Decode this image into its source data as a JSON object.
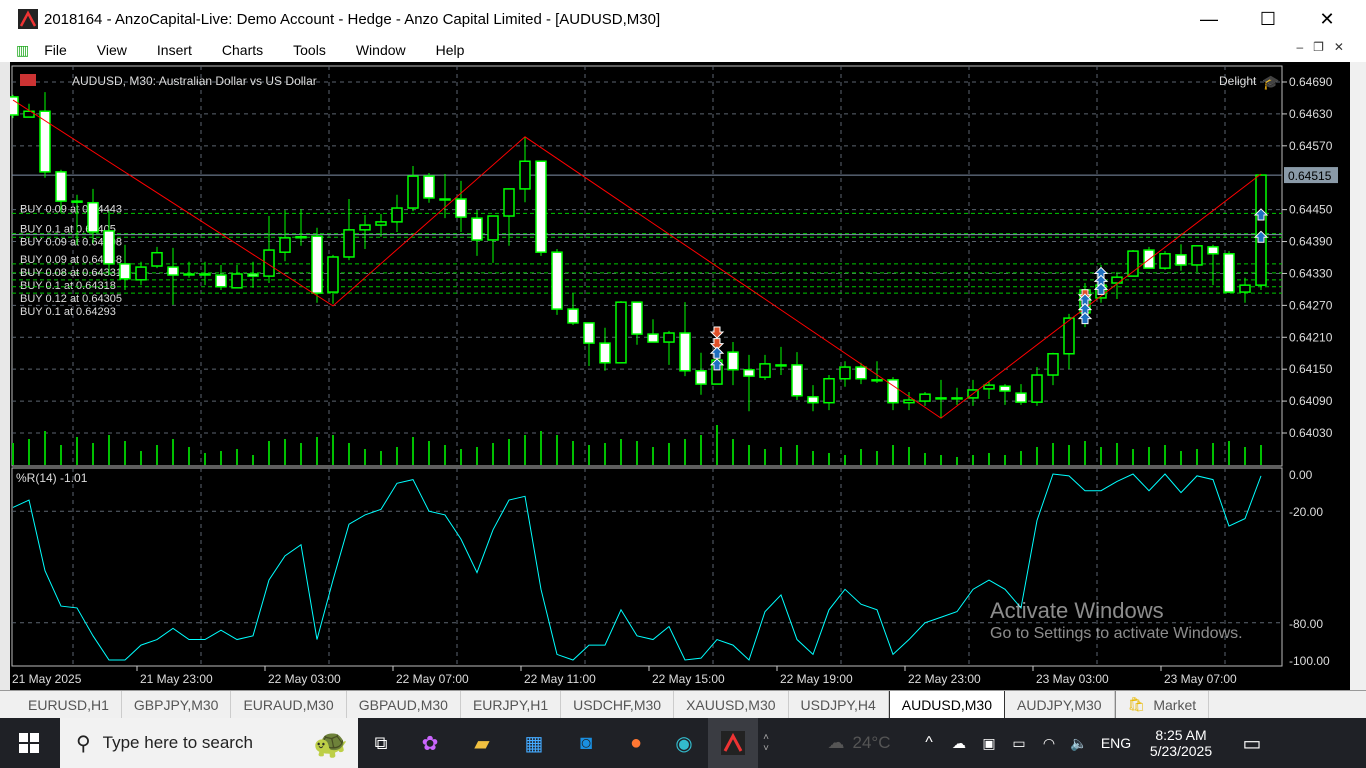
{
  "window": {
    "title": "2018164 - AnzoCapital-Live: Demo Account - Hedge - Anzo Capital Limited - [AUDUSD,M30]",
    "minimize": "—",
    "maximize": "☐",
    "close": "✕"
  },
  "menu": [
    "File",
    "View",
    "Insert",
    "Charts",
    "Tools",
    "Window",
    "Help"
  ],
  "chart": {
    "symbol_label": "AUDUSD, M30:  Australian Dollar vs US Dollar",
    "account_label": "Delight",
    "indicator_label": "%R(14) -1.01",
    "current_price": "0.64515",
    "colors": {
      "bull_border": "#00ff00",
      "bear_fill": "#ffffff",
      "grid": "#5c6570",
      "zigzag": "#ff0000",
      "wpr": "#00ffff",
      "volume": "#00c000",
      "buy_line": "#00c800",
      "bid_line": "#8090a8"
    }
  },
  "chart_data": {
    "type": "candlestick",
    "symbol": "AUDUSD",
    "timeframe": "M30",
    "price_ticks": [
      "0.64690",
      "0.64630",
      "0.64570",
      "0.64450",
      "0.64390",
      "0.64330",
      "0.64270",
      "0.64210",
      "0.64150",
      "0.64090",
      "0.64030"
    ],
    "price_range": [
      0.64005,
      0.647
    ],
    "time_labels": [
      {
        "bar": 0,
        "label": "21 May 2025"
      },
      {
        "bar": 8,
        "label": "21 May 23:00"
      },
      {
        "bar": 16,
        "label": "22 May 03:00"
      },
      {
        "bar": 24,
        "label": "22 May 07:00"
      },
      {
        "bar": 32,
        "label": "22 May 11:00"
      },
      {
        "bar": 40,
        "label": "22 May 15:00"
      },
      {
        "bar": 48,
        "label": "22 May 19:00"
      },
      {
        "bar": 56,
        "label": "22 May 23:00"
      },
      {
        "bar": 64,
        "label": "23 May 03:00"
      },
      {
        "bar": 72,
        "label": "23 May 07:00"
      }
    ],
    "ohlc": [
      [
        0.64662,
        0.64666,
        0.64622,
        0.64628
      ],
      [
        0.64624,
        0.64649,
        0.64624,
        0.64635
      ],
      [
        0.64635,
        0.64671,
        0.6451,
        0.64521
      ],
      [
        0.64521,
        0.64525,
        0.64444,
        0.64466
      ],
      [
        0.64466,
        0.64478,
        0.64384,
        0.64464
      ],
      [
        0.64463,
        0.64489,
        0.64387,
        0.64408
      ],
      [
        0.6441,
        0.64447,
        0.64327,
        0.64348
      ],
      [
        0.64348,
        0.64384,
        0.64299,
        0.6432
      ],
      [
        0.64318,
        0.64352,
        0.64308,
        0.64342
      ],
      [
        0.64344,
        0.6438,
        0.6434,
        0.64369
      ],
      [
        0.64342,
        0.64378,
        0.64271,
        0.64327
      ],
      [
        0.64329,
        0.64352,
        0.64322,
        0.64328
      ],
      [
        0.64329,
        0.64352,
        0.64308,
        0.64328
      ],
      [
        0.64327,
        0.64346,
        0.64299,
        0.64305
      ],
      [
        0.64303,
        0.64346,
        0.64303,
        0.64329
      ],
      [
        0.64329,
        0.64352,
        0.64303,
        0.64325
      ],
      [
        0.64325,
        0.64438,
        0.64312,
        0.64374
      ],
      [
        0.6437,
        0.64449,
        0.64353,
        0.64397
      ],
      [
        0.64399,
        0.64451,
        0.64382,
        0.64398
      ],
      [
        0.644,
        0.64416,
        0.64275,
        0.64293
      ],
      [
        0.64295,
        0.64365,
        0.64273,
        0.64361
      ],
      [
        0.64361,
        0.6447,
        0.64355,
        0.64412
      ],
      [
        0.64412,
        0.6444,
        0.64376,
        0.64421
      ],
      [
        0.64421,
        0.64442,
        0.64399,
        0.64427
      ],
      [
        0.64427,
        0.64478,
        0.64408,
        0.64453
      ],
      [
        0.64453,
        0.64532,
        0.64447,
        0.64513
      ],
      [
        0.64513,
        0.64519,
        0.64463,
        0.64472
      ],
      [
        0.6447,
        0.64517,
        0.64434,
        0.64469
      ],
      [
        0.6447,
        0.64504,
        0.64408,
        0.64436
      ],
      [
        0.64434,
        0.64449,
        0.64363,
        0.64393
      ],
      [
        0.64393,
        0.64438,
        0.6435,
        0.64438
      ],
      [
        0.64438,
        0.64489,
        0.64382,
        0.64489
      ],
      [
        0.64489,
        0.64587,
        0.64464,
        0.64541
      ],
      [
        0.64541,
        0.64541,
        0.64363,
        0.6437
      ],
      [
        0.6437,
        0.64376,
        0.64252,
        0.64263
      ],
      [
        0.64263,
        0.64293,
        0.64233,
        0.64237
      ],
      [
        0.64237,
        0.64237,
        0.64156,
        0.64199
      ],
      [
        0.64199,
        0.64228,
        0.64147,
        0.64162
      ],
      [
        0.64162,
        0.64278,
        0.64162,
        0.64276
      ],
      [
        0.64276,
        0.64276,
        0.64196,
        0.64216
      ],
      [
        0.64216,
        0.64244,
        0.64201,
        0.64201
      ],
      [
        0.64201,
        0.64222,
        0.64158,
        0.64218
      ],
      [
        0.64218,
        0.64276,
        0.64137,
        0.64147
      ],
      [
        0.64147,
        0.64181,
        0.64102,
        0.64122
      ],
      [
        0.64122,
        0.64177,
        0.64122,
        0.64167
      ],
      [
        0.64182,
        0.64201,
        0.6412,
        0.64149
      ],
      [
        0.64149,
        0.64177,
        0.64071,
        0.64137
      ],
      [
        0.64135,
        0.64177,
        0.6413,
        0.6416
      ],
      [
        0.64158,
        0.64192,
        0.64139,
        0.64157
      ],
      [
        0.64158,
        0.64182,
        0.64092,
        0.641
      ],
      [
        0.64098,
        0.6412,
        0.64071,
        0.64087
      ],
      [
        0.64087,
        0.64139,
        0.64073,
        0.64132
      ],
      [
        0.64132,
        0.64165,
        0.64117,
        0.64154
      ],
      [
        0.64154,
        0.64162,
        0.64122,
        0.64132
      ],
      [
        0.6413,
        0.64165,
        0.64124,
        0.64129
      ],
      [
        0.6413,
        0.64135,
        0.64073,
        0.64087
      ],
      [
        0.64087,
        0.64107,
        0.64073,
        0.64092
      ],
      [
        0.6409,
        0.64107,
        0.64081,
        0.64103
      ],
      [
        0.64096,
        0.6413,
        0.64058,
        0.64095
      ],
      [
        0.64096,
        0.64115,
        0.64083,
        0.64095
      ],
      [
        0.64096,
        0.6413,
        0.64081,
        0.64111
      ],
      [
        0.64113,
        0.64126,
        0.64094,
        0.6412
      ],
      [
        0.64118,
        0.64122,
        0.64083,
        0.64109
      ],
      [
        0.64105,
        0.64122,
        0.64083,
        0.64088
      ],
      [
        0.64088,
        0.64154,
        0.64081,
        0.64139
      ],
      [
        0.64139,
        0.64181,
        0.6412,
        0.64179
      ],
      [
        0.64179,
        0.64254,
        0.6415,
        0.64246
      ],
      [
        0.64256,
        0.64312,
        0.64229,
        0.64299
      ],
      [
        0.64284,
        0.64346,
        0.64275,
        0.64308
      ],
      [
        0.64312,
        0.64333,
        0.64282,
        0.64323
      ],
      [
        0.64325,
        0.64374,
        0.64325,
        0.64372
      ],
      [
        0.64374,
        0.6438,
        0.6434,
        0.6434
      ],
      [
        0.6434,
        0.64372,
        0.64337,
        0.64367
      ],
      [
        0.64365,
        0.64385,
        0.64335,
        0.64346
      ],
      [
        0.64346,
        0.64382,
        0.64333,
        0.64382
      ],
      [
        0.6438,
        0.64384,
        0.64308,
        0.64367
      ],
      [
        0.64367,
        0.64372,
        0.64293,
        0.64295
      ],
      [
        0.64295,
        0.64322,
        0.64275,
        0.64308
      ],
      [
        0.64308,
        0.64517,
        0.64299,
        0.64515
      ]
    ],
    "volume": [
      22,
      26,
      34,
      20,
      28,
      22,
      30,
      24,
      14,
      20,
      26,
      18,
      12,
      14,
      16,
      10,
      24,
      26,
      22,
      28,
      30,
      22,
      16,
      14,
      18,
      28,
      24,
      20,
      16,
      18,
      22,
      26,
      30,
      34,
      30,
      24,
      20,
      22,
      26,
      24,
      18,
      22,
      26,
      30,
      40,
      26,
      20,
      16,
      18,
      20,
      14,
      12,
      10,
      16,
      14,
      20,
      18,
      12,
      10,
      8,
      10,
      12,
      10,
      14,
      18,
      22,
      20,
      24,
      18,
      22,
      16,
      18,
      20,
      14,
      16,
      22,
      24,
      18,
      20
    ],
    "wpr": {
      "label": "%R(14)",
      "last": -1.01,
      "levels": [
        0,
        -20,
        -80,
        -100
      ],
      "tick_labels": [
        "0.00",
        "-20.00",
        "-80.00",
        "-100.00"
      ],
      "values": [
        -18,
        -14,
        -52,
        -71,
        -72,
        -87,
        -100,
        -100,
        -92,
        -89,
        -83,
        -89,
        -89,
        -84,
        -89,
        -87,
        -57,
        -44,
        -38,
        -89,
        -57,
        -27,
        -22,
        -19,
        -5,
        -3,
        -20,
        -22,
        -35,
        -53,
        -30,
        -14,
        -12,
        -62,
        -97,
        -100,
        -92,
        -92,
        -73,
        -87,
        -89,
        -82,
        -100,
        -99,
        -89,
        -92,
        -100,
        -74,
        -65,
        -89,
        -97,
        -73,
        -62,
        -70,
        -73,
        -97,
        -89,
        -80,
        -77,
        -74,
        -62,
        -57,
        -62,
        -72,
        -25,
        0,
        -1,
        -9,
        -9,
        -4,
        0,
        -9,
        0,
        -10,
        -1,
        -3,
        -28,
        -24,
        -1.01
      ]
    },
    "zigzag": [
      {
        "bar": 0,
        "price": 0.64656
      },
      {
        "bar": 20,
        "price": 0.64269
      },
      {
        "bar": 32,
        "price": 0.64587
      },
      {
        "bar": 58,
        "price": 0.64058
      },
      {
        "bar": 78,
        "price": 0.64517
      }
    ],
    "buy_positions": [
      {
        "label": "BUY 0.09 at 0.64443",
        "price": 0.64443
      },
      {
        "label": "BUY 0.1 at 0.64405",
        "price": 0.64405
      },
      {
        "label": "BUY 0.09 at 0.64398",
        "price": 0.64398
      },
      {
        "label": "BUY 0.09 at 0.64348",
        "price": 0.64348
      },
      {
        "label": "BUY 0.08 at 0.64331",
        "price": 0.64331
      },
      {
        "label": "BUY 0.1 at 0.64318",
        "price": 0.64318
      },
      {
        "label": "BUY 0.12 at 0.64305",
        "price": 0.64305
      },
      {
        "label": "BUY 0.1 at 0.64293",
        "price": 0.64293
      }
    ],
    "trade_arrows": [
      {
        "bar": 44,
        "price": 0.6422,
        "side": "sell"
      },
      {
        "bar": 44,
        "price": 0.64198,
        "side": "sell"
      },
      {
        "bar": 44,
        "price": 0.6418,
        "side": "buy"
      },
      {
        "bar": 44,
        "price": 0.64158,
        "side": "buy"
      },
      {
        "bar": 67,
        "price": 0.6429,
        "side": "sell"
      },
      {
        "bar": 67,
        "price": 0.6428,
        "side": "buy"
      },
      {
        "bar": 67,
        "price": 0.64262,
        "side": "buy"
      },
      {
        "bar": 67,
        "price": 0.64245,
        "side": "buy"
      },
      {
        "bar": 68,
        "price": 0.6433,
        "side": "buy"
      },
      {
        "bar": 68,
        "price": 0.64315,
        "side": "buy"
      },
      {
        "bar": 68,
        "price": 0.643,
        "side": "buy"
      },
      {
        "bar": 78,
        "price": 0.6444,
        "side": "buy"
      },
      {
        "bar": 78,
        "price": 0.64398,
        "side": "buy"
      }
    ]
  },
  "tabs": [
    {
      "label": "EURUSD,H1"
    },
    {
      "label": "GBPJPY,M30"
    },
    {
      "label": "EURAUD,M30"
    },
    {
      "label": "GBPAUD,M30"
    },
    {
      "label": "EURJPY,H1"
    },
    {
      "label": "USDCHF,M30"
    },
    {
      "label": "XAUUSD,M30"
    },
    {
      "label": "USDJPY,H4"
    },
    {
      "label": "AUDUSD,M30",
      "active": true
    },
    {
      "label": "AUDJPY,M30"
    },
    {
      "label": "Market",
      "icon": "shopping-bag-icon"
    }
  ],
  "taskbar": {
    "search_placeholder": "Type here to search",
    "weather": "24°C",
    "language": "ENG",
    "time": "8:25 AM",
    "date": "5/23/2025"
  },
  "watermark": {
    "line1": "Activate Windows",
    "line2": "Go to Settings to activate Windows."
  }
}
